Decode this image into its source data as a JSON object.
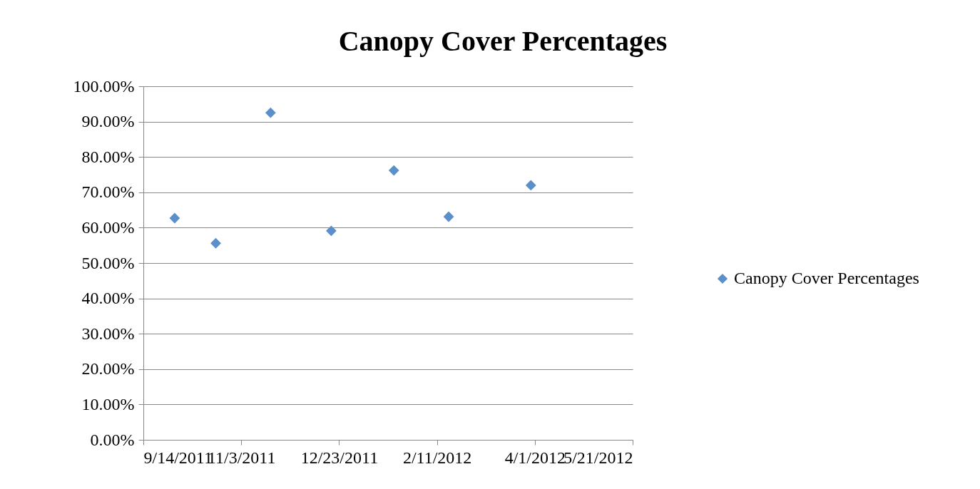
{
  "chart_data": {
    "type": "scatter",
    "title": "Canopy Cover Percentages",
    "x": [
      "2011-09-30",
      "2011-10-21",
      "2011-11-18",
      "2011-12-19",
      "2012-01-20",
      "2012-02-17",
      "2012-03-30"
    ],
    "series": [
      {
        "name": "Canopy Cover Percentages",
        "color": "#5b8fc9",
        "values": [
          62.7,
          55.6,
          92.5,
          59.1,
          76.2,
          63.1,
          72.0
        ]
      }
    ],
    "xlim": [
      "2011-09-14",
      "2012-05-21"
    ],
    "xticks": [
      {
        "value": "2011-09-14",
        "label": "9/14/2011"
      },
      {
        "value": "2011-11-03",
        "label": "11/3/2011"
      },
      {
        "value": "2011-12-23",
        "label": "12/23/2011"
      },
      {
        "value": "2012-02-11",
        "label": "2/11/2012"
      },
      {
        "value": "2012-04-01",
        "label": "4/1/2012"
      },
      {
        "value": "2012-05-21",
        "label": "5/21/2012"
      }
    ],
    "ylim": [
      0,
      100
    ],
    "yticks": [
      {
        "value": 0,
        "label": "0.00%"
      },
      {
        "value": 10,
        "label": "10.00%"
      },
      {
        "value": 20,
        "label": "20.00%"
      },
      {
        "value": 30,
        "label": "30.00%"
      },
      {
        "value": 40,
        "label": "40.00%"
      },
      {
        "value": 50,
        "label": "50.00%"
      },
      {
        "value": 60,
        "label": "60.00%"
      },
      {
        "value": 70,
        "label": "70.00%"
      },
      {
        "value": 80,
        "label": "80.00%"
      },
      {
        "value": 90,
        "label": "90.00%"
      },
      {
        "value": 100,
        "label": "100.00%"
      }
    ],
    "grid": "y",
    "legend": "right",
    "marker": "diamond"
  }
}
